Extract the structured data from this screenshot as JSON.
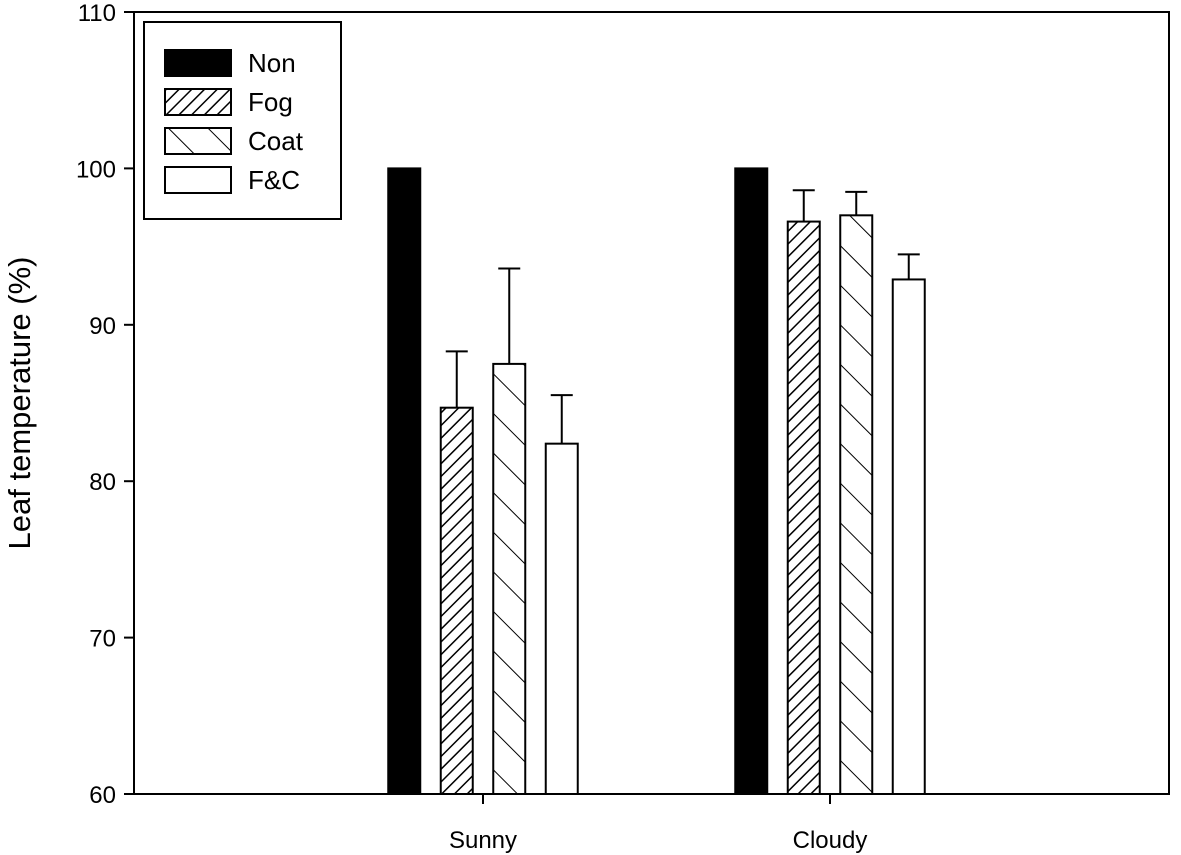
{
  "chart_data": {
    "type": "bar",
    "title": "",
    "xlabel": "",
    "ylabel": "Leaf temperature (%)",
    "ylim": [
      60,
      110
    ],
    "yticks": [
      60,
      70,
      80,
      90,
      100,
      110
    ],
    "grid": false,
    "legend_position": "top-left",
    "categories": [
      "Sunny",
      "Cloudy"
    ],
    "series": [
      {
        "name": "Non",
        "pattern": "solid-black",
        "values": [
          100,
          100
        ],
        "errors": [
          null,
          null
        ]
      },
      {
        "name": "Fog",
        "pattern": "hatch-dense",
        "values": [
          84.7,
          96.6
        ],
        "errors": [
          3.6,
          2.0
        ]
      },
      {
        "name": "Coat",
        "pattern": "hatch-backslash",
        "values": [
          87.5,
          97.0
        ],
        "errors": [
          6.1,
          1.5
        ]
      },
      {
        "name": "F&C",
        "pattern": "white",
        "values": [
          82.4,
          92.9
        ],
        "errors": [
          3.1,
          1.6
        ]
      }
    ]
  }
}
